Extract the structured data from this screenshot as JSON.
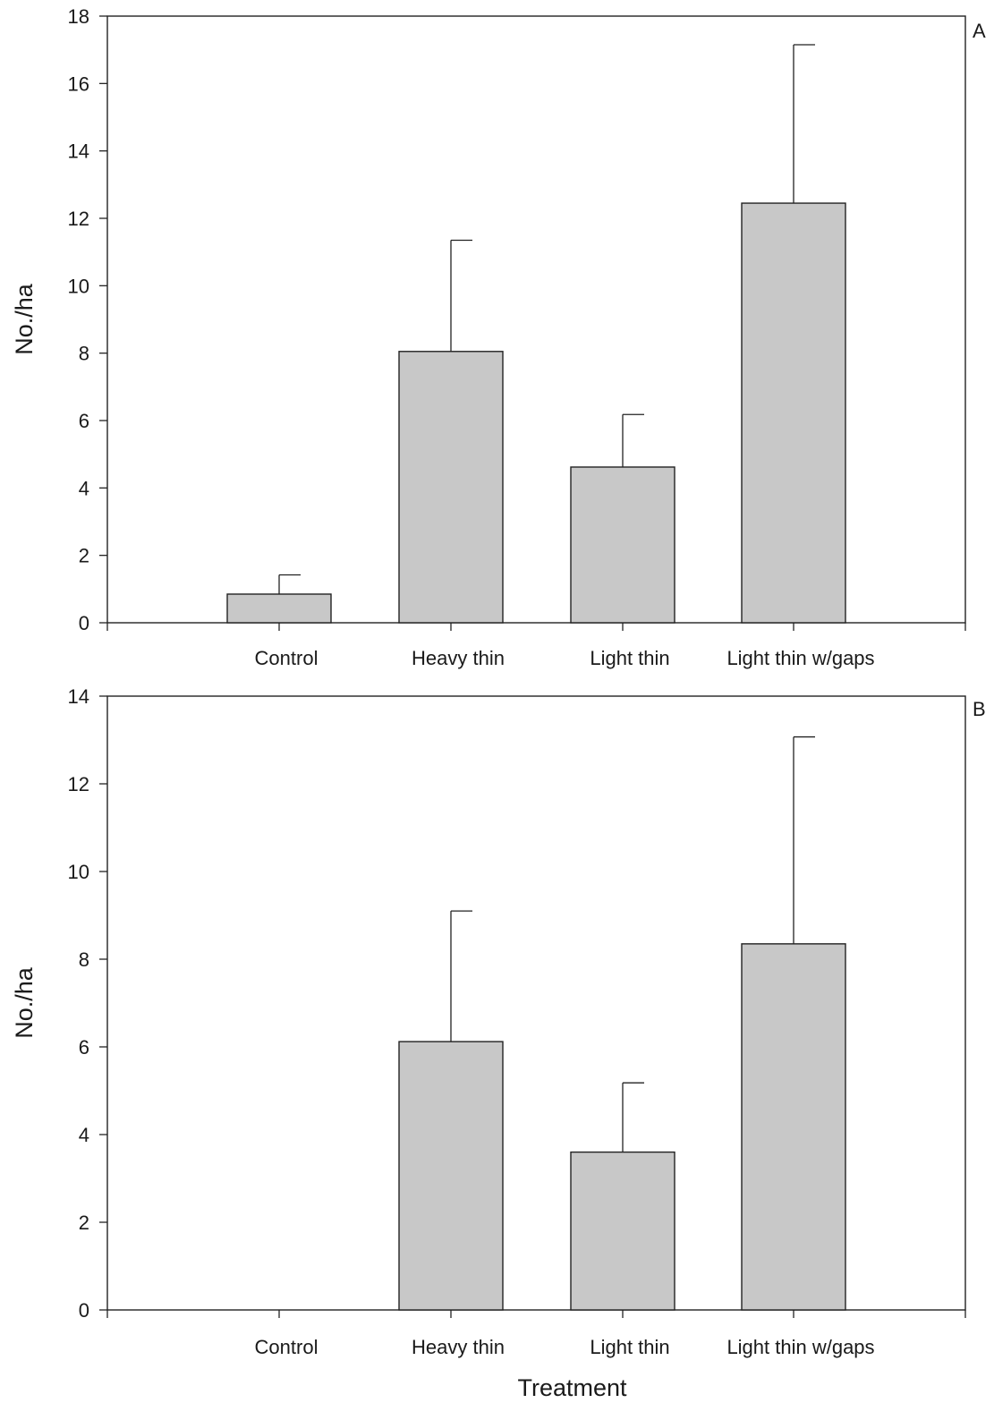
{
  "chart_data": [
    {
      "type": "bar",
      "panel_label": "A",
      "categories": [
        "Control",
        "Heavy thin",
        "Light thin",
        "Light thin w/gaps"
      ],
      "values": [
        0.85,
        8.05,
        4.62,
        12.45
      ],
      "error_upper": [
        1.42,
        11.35,
        6.18,
        17.15
      ],
      "ylabel": "No./ha",
      "xlabel": "",
      "ylim": [
        0,
        18
      ],
      "yticks": [
        0,
        2,
        4,
        6,
        8,
        10,
        12,
        14,
        16,
        18
      ],
      "bar_color": "#c8c8c8",
      "grid": false
    },
    {
      "type": "bar",
      "panel_label": "B",
      "categories": [
        "Control",
        "Heavy thin",
        "Light thin",
        "Light thin w/gaps"
      ],
      "values": [
        0,
        6.12,
        3.6,
        8.35
      ],
      "error_upper": [
        null,
        9.1,
        5.18,
        13.07
      ],
      "ylabel": "No./ha",
      "xlabel": "Treatment",
      "ylim": [
        0,
        14
      ],
      "yticks": [
        0,
        2,
        4,
        6,
        8,
        10,
        12,
        14
      ],
      "bar_color": "#c8c8c8",
      "grid": false
    }
  ]
}
